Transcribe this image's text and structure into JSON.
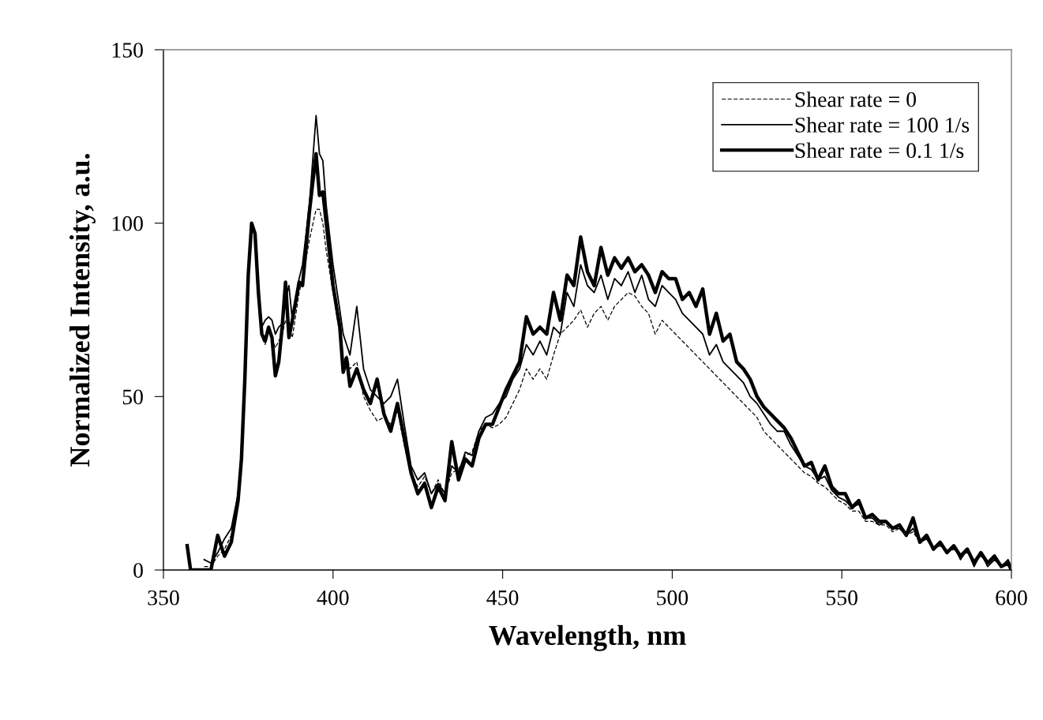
{
  "chart_data": {
    "type": "line",
    "xlabel": "Wavelength, nm",
    "ylabel": "Normalized Intensity, a.u.",
    "xlim": [
      350,
      600
    ],
    "xticks": [
      350,
      400,
      450,
      500,
      550,
      600
    ],
    "ylim": [
      0,
      150
    ],
    "yticks": [
      0,
      50,
      100,
      150
    ],
    "grid": false,
    "legend": "top right",
    "marker": "none",
    "x": [
      357,
      358,
      362,
      364,
      366,
      368,
      370,
      372,
      373,
      374,
      375,
      376,
      377,
      378,
      379,
      380,
      381,
      382,
      383,
      384,
      385,
      386,
      387,
      388,
      390,
      391,
      393,
      395,
      396,
      397,
      398,
      400,
      402,
      403,
      404,
      405,
      407,
      409,
      411,
      413,
      415,
      417,
      419,
      421,
      423,
      425,
      427,
      429,
      431,
      433,
      435,
      437,
      439,
      441,
      443,
      445,
      447,
      449,
      451,
      453,
      455,
      457,
      459,
      461,
      463,
      465,
      467,
      469,
      471,
      473,
      475,
      477,
      479,
      481,
      483,
      485,
      487,
      489,
      491,
      493,
      495,
      497,
      499,
      501,
      503,
      505,
      507,
      509,
      511,
      513,
      515,
      517,
      519,
      521,
      523,
      525,
      527,
      529,
      531,
      533,
      535,
      537,
      539,
      541,
      543,
      545,
      547,
      549,
      551,
      553,
      555,
      557,
      559,
      561,
      563,
      565,
      567,
      569,
      571,
      573,
      575,
      577,
      579,
      581,
      583,
      585,
      587,
      589,
      591,
      593,
      595,
      597,
      599,
      600
    ],
    "series": [
      {
        "name": "Shear rate = 0",
        "color": "#000000",
        "line_style": "dashed",
        "values": [
          null,
          null,
          1,
          1,
          4,
          6,
          10,
          21,
          32,
          55,
          85,
          100,
          97,
          80,
          67,
          65,
          69,
          67,
          64,
          66,
          68,
          72,
          70,
          67,
          80,
          84,
          95,
          104,
          104,
          100,
          92,
          80,
          68,
          60,
          62,
          58,
          60,
          50,
          46,
          43,
          44,
          42,
          46,
          36,
          28,
          24,
          27,
          22,
          26,
          22,
          28,
          29,
          33,
          34,
          40,
          42,
          41,
          42,
          44,
          48,
          52,
          58,
          55,
          58,
          55,
          62,
          68,
          70,
          72,
          75,
          70,
          74,
          76,
          72,
          76,
          78,
          80,
          79,
          76,
          74,
          68,
          72,
          70,
          68,
          66,
          64,
          62,
          60,
          58,
          56,
          54,
          52,
          50,
          48,
          46,
          44,
          40,
          38,
          36,
          34,
          32,
          30,
          28,
          27,
          25,
          24,
          22,
          20,
          19,
          17,
          17,
          14,
          14,
          13,
          13,
          11,
          12,
          10,
          11,
          8,
          9,
          6,
          7,
          5,
          6,
          4,
          5,
          3,
          4,
          2,
          3,
          1,
          2,
          0
        ]
      },
      {
        "name": "Shear rate = 100 1/s",
        "color": "#000000",
        "line_style": "solid",
        "values": [
          null,
          null,
          3,
          2,
          5,
          9,
          12,
          22,
          33,
          55,
          85,
          100,
          97,
          80,
          70,
          72,
          73,
          72,
          68,
          70,
          71,
          78,
          82,
          72,
          84,
          88,
          105,
          131,
          120,
          118,
          105,
          88,
          75,
          68,
          65,
          62,
          76,
          58,
          52,
          50,
          48,
          50,
          55,
          42,
          30,
          26,
          28,
          22,
          25,
          22,
          30,
          28,
          34,
          33,
          40,
          44,
          45,
          48,
          50,
          55,
          58,
          65,
          62,
          66,
          62,
          70,
          68,
          80,
          76,
          88,
          82,
          80,
          85,
          78,
          84,
          82,
          86,
          80,
          85,
          78,
          76,
          82,
          80,
          78,
          74,
          72,
          70,
          68,
          62,
          65,
          60,
          58,
          56,
          54,
          50,
          48,
          45,
          42,
          40,
          40,
          36,
          33,
          30,
          29,
          26,
          27,
          23,
          21,
          20,
          18,
          19,
          15,
          15,
          13,
          14,
          12,
          12,
          10,
          12,
          8,
          9,
          6,
          8,
          5,
          7,
          3,
          6,
          1,
          5,
          1,
          3,
          1,
          3,
          1
        ]
      },
      {
        "name": "Shear rate = 0.1 1/s",
        "color": "#000000",
        "line_style": "solid",
        "values": [
          7,
          0,
          0,
          0,
          10,
          4,
          8,
          20,
          32,
          55,
          85,
          100,
          97,
          80,
          68,
          66,
          70,
          67,
          56,
          60,
          70,
          83,
          67,
          72,
          83,
          82,
          103,
          120,
          108,
          109,
          100,
          82,
          70,
          57,
          61,
          53,
          58,
          52,
          48,
          55,
          45,
          40,
          48,
          38,
          28,
          22,
          25,
          18,
          24,
          20,
          37,
          26,
          32,
          30,
          38,
          42,
          42,
          47,
          52,
          56,
          60,
          73,
          68,
          70,
          68,
          80,
          72,
          85,
          82,
          96,
          86,
          82,
          93,
          85,
          90,
          87,
          90,
          86,
          88,
          85,
          80,
          86,
          84,
          84,
          78,
          80,
          76,
          81,
          68,
          74,
          66,
          68,
          60,
          58,
          55,
          50,
          47,
          45,
          43,
          41,
          38,
          34,
          30,
          31,
          26,
          30,
          24,
          22,
          22,
          18,
          20,
          15,
          16,
          14,
          14,
          12,
          13,
          10,
          15,
          8,
          10,
          6,
          8,
          5,
          7,
          4,
          6,
          2,
          5,
          2,
          4,
          1,
          2,
          0
        ]
      }
    ]
  }
}
